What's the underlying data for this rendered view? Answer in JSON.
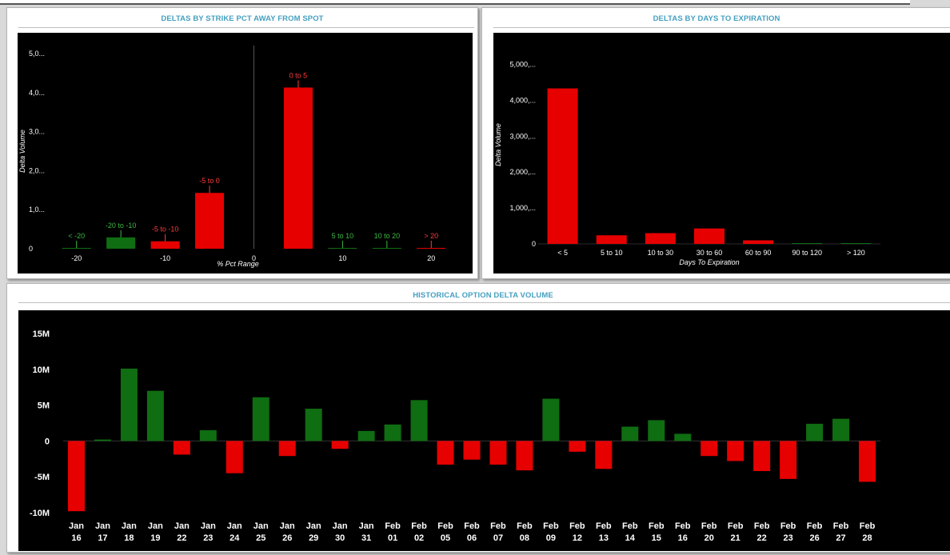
{
  "panels": {
    "strike": {
      "title": "DELTAS BY STRIKE PCT AWAY FROM SPOT"
    },
    "expiration": {
      "title": "DELTAS BY DAYS TO EXPIRATION"
    },
    "history": {
      "title": "HISTORICAL OPTION DELTA VOLUME"
    }
  },
  "colors": {
    "positive": "#0f6d12",
    "negative": "#e60000",
    "background": "#000000",
    "axis_text": "#ffffff",
    "label_green": "#3cb843",
    "label_red": "#ff3b3b",
    "title": "#46a0c0"
  },
  "chart_data": [
    {
      "type": "bar",
      "title": "DELTAS BY STRIKE PCT AWAY FROM SPOT",
      "xlabel": "% Pct Range",
      "ylabel": "Delta Volume",
      "x_ticks": [
        "-20",
        "-10",
        "0",
        "10",
        "20"
      ],
      "x_tick_values": [
        -20,
        -10,
        0,
        10,
        20
      ],
      "y_ticks": [
        "0",
        "1,0...",
        "2,0...",
        "3,0...",
        "4,0...",
        "5,0..."
      ],
      "y_tick_values": [
        0,
        1000,
        2000,
        3000,
        4000,
        5000
      ],
      "xlim": [
        -22.5,
        22.5
      ],
      "ylim": [
        0,
        5000
      ],
      "bars": [
        {
          "label": "< -20",
          "x": -20,
          "value": 20,
          "sign": "positive"
        },
        {
          "label": "-20 to -10",
          "x": -15,
          "value": 290,
          "sign": "positive"
        },
        {
          "label": "-5 to -10",
          "x": -10,
          "value": 190,
          "sign": "negative"
        },
        {
          "label": "-5 to 0",
          "x": -5,
          "value": 1430,
          "sign": "negative"
        },
        {
          "label": "0 to 5",
          "x": 5,
          "value": 4130,
          "sign": "negative"
        },
        {
          "label": "5 to 10",
          "x": 10,
          "value": 10,
          "sign": "positive"
        },
        {
          "label": "10 to 20",
          "x": 15,
          "value": 20,
          "sign": "positive"
        },
        {
          "label": "> 20",
          "x": 20,
          "value": 5,
          "sign": "negative"
        }
      ]
    },
    {
      "type": "bar",
      "title": "DELTAS BY DAYS TO EXPIRATION",
      "xlabel": "Days To Expiration",
      "ylabel": "Delta Volume",
      "categories": [
        "< 5",
        "5 to 10",
        "10 to 30",
        "30 to 60",
        "60 to 90",
        "90 to 120",
        "> 120"
      ],
      "values": [
        4330,
        240,
        300,
        430,
        100,
        10,
        10
      ],
      "signs": [
        "negative",
        "negative",
        "negative",
        "negative",
        "negative",
        "positive",
        "positive"
      ],
      "y_ticks": [
        "0",
        "1,000,...",
        "2,000,...",
        "3,000,...",
        "4,000,...",
        "5,000,..."
      ],
      "y_tick_values": [
        0,
        1000,
        2000,
        3000,
        4000,
        5000
      ],
      "ylim": [
        0,
        5300
      ]
    },
    {
      "type": "bar",
      "title": "HISTORICAL OPTION DELTA VOLUME",
      "categories": [
        [
          "Jan",
          "16"
        ],
        [
          "Jan",
          "17"
        ],
        [
          "Jan",
          "18"
        ],
        [
          "Jan",
          "19"
        ],
        [
          "Jan",
          "22"
        ],
        [
          "Jan",
          "23"
        ],
        [
          "Jan",
          "24"
        ],
        [
          "Jan",
          "25"
        ],
        [
          "Jan",
          "26"
        ],
        [
          "Jan",
          "29"
        ],
        [
          "Jan",
          "30"
        ],
        [
          "Jan",
          "31"
        ],
        [
          "Feb",
          "01"
        ],
        [
          "Feb",
          "02"
        ],
        [
          "Feb",
          "05"
        ],
        [
          "Feb",
          "06"
        ],
        [
          "Feb",
          "07"
        ],
        [
          "Feb",
          "08"
        ],
        [
          "Feb",
          "09"
        ],
        [
          "Feb",
          "12"
        ],
        [
          "Feb",
          "13"
        ],
        [
          "Feb",
          "14"
        ],
        [
          "Feb",
          "15"
        ],
        [
          "Feb",
          "16"
        ],
        [
          "Feb",
          "20"
        ],
        [
          "Feb",
          "21"
        ],
        [
          "Feb",
          "22"
        ],
        [
          "Feb",
          "23"
        ],
        [
          "Feb",
          "26"
        ],
        [
          "Feb",
          "27"
        ],
        [
          "Feb",
          "28"
        ]
      ],
      "values": [
        -9.8,
        0.2,
        10.1,
        7.0,
        -1.9,
        1.5,
        -4.5,
        6.1,
        -2.1,
        4.5,
        -1.1,
        1.4,
        2.3,
        5.7,
        -3.3,
        -2.6,
        -3.3,
        -4.1,
        5.9,
        -1.5,
        -3.9,
        2.0,
        2.9,
        1.0,
        -2.1,
        -2.8,
        -4.2,
        -5.3,
        2.4,
        3.1,
        -5.7
      ],
      "unit": "M",
      "y_ticks": [
        "-10M",
        "-5M",
        "0",
        "5M",
        "10M",
        "15M"
      ],
      "y_tick_values": [
        -10,
        -5,
        0,
        5,
        10,
        15
      ],
      "ylim": [
        -10,
        15
      ]
    }
  ]
}
